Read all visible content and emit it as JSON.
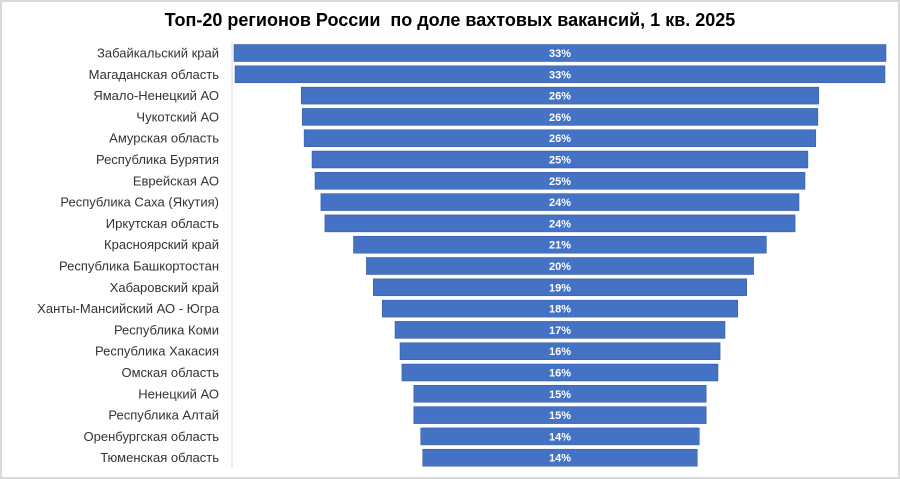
{
  "chart_data": {
    "type": "bar",
    "orientation": "horizontal",
    "style": "funnel (bars centered)",
    "title": "Топ-20 регионов России  по доле вахтовых вакансий, 1 кв. 2025",
    "xlabel": "",
    "ylabel": "",
    "bar_color": "#4472C4",
    "value_format": "percent",
    "categories": [
      "Забайкальский край",
      "Магаданская область",
      "Ямало-Ненецкий АО",
      "Чукотский АО",
      "Амурская область",
      "Республика Бурятия",
      "Еврейская АО",
      "Республика Саха (Якутия)",
      "Иркутская область",
      "Красноярский край",
      "Республика Башкортостан",
      "Хабаровский край",
      "Ханты-Мансийский АО - Югра",
      "Республика Коми",
      "Республика Хакасия",
      "Омская область",
      "Ненецкий АО",
      "Республика Алтай",
      "Оренбургская область",
      "Тюменская область"
    ],
    "values": [
      33.0,
      32.9,
      26.2,
      26.1,
      25.9,
      25.1,
      24.8,
      24.2,
      23.8,
      20.9,
      19.6,
      18.9,
      18.0,
      16.7,
      16.2,
      16.0,
      14.8,
      14.8,
      14.1,
      13.9
    ],
    "labels": [
      "33%",
      "33%",
      "26%",
      "26%",
      "26%",
      "25%",
      "25%",
      "24%",
      "24%",
      "21%",
      "20%",
      "19%",
      "18%",
      "17%",
      "16%",
      "16%",
      "15%",
      "15%",
      "14%",
      "14%"
    ],
    "xlim": [
      0,
      33
    ]
  }
}
